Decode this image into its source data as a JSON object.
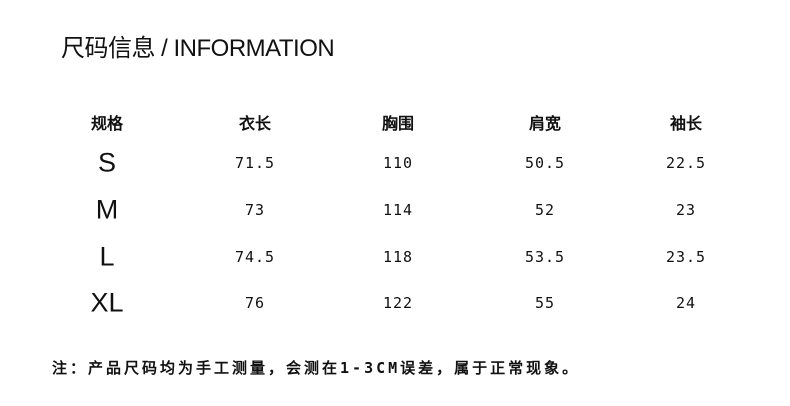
{
  "title": "尺码信息 / INFORMATION",
  "table": {
    "headers": [
      "规格",
      "衣长",
      "胸围",
      "肩宽",
      "袖长"
    ],
    "rows": [
      [
        "S",
        "71.5",
        "110",
        "50.5",
        "22.5"
      ],
      [
        "M",
        "73",
        "114",
        "52",
        "23"
      ],
      [
        "L",
        "74.5",
        "118",
        "53.5",
        "23.5"
      ],
      [
        "XL",
        "76",
        "122",
        "55",
        "24"
      ]
    ]
  },
  "note": "注：产品尺码均为手工测量，会测在1-3CM误差，属于正常现象。"
}
